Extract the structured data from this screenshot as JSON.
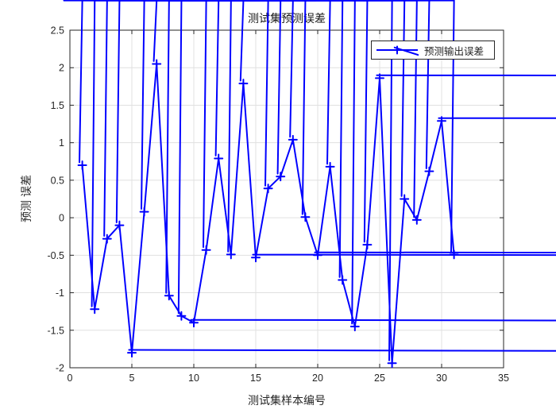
{
  "figure": {
    "background": "#ffffff"
  },
  "chart_data": {
    "type": "line",
    "title": "测试集预测误差",
    "xlabel": "测试集样本编号",
    "ylabel": "预测 误差",
    "legend": {
      "label": "预测输出误差",
      "position": "top-right"
    },
    "x": [
      1,
      2,
      3,
      4,
      5,
      6,
      7,
      8,
      9,
      10,
      11,
      12,
      13,
      14,
      15,
      16,
      17,
      18,
      19,
      20,
      21,
      22,
      23,
      24,
      25,
      26,
      27,
      28,
      29,
      30,
      31
    ],
    "y": [
      0.7,
      -1.22,
      -0.28,
      -0.1,
      -1.8,
      0.08,
      2.05,
      -1.04,
      -1.31,
      -1.4,
      -0.43,
      0.79,
      -0.49,
      1.79,
      -0.53,
      0.39,
      0.55,
      1.04,
      0.01,
      -0.5,
      0.68,
      -0.83,
      -1.45,
      -0.36,
      1.86,
      -1.94,
      0.25,
      -0.03,
      0.62,
      1.29,
      -0.49
    ],
    "xlim": [
      0,
      35
    ],
    "ylim": [
      -2,
      2.5
    ],
    "xticks": [
      0,
      5,
      10,
      15,
      20,
      25,
      30,
      35
    ],
    "yticks": [
      -2,
      -1.5,
      -1,
      -0.5,
      0,
      0.5,
      1,
      1.5,
      2,
      2.5
    ],
    "grid": true,
    "line_color": "#0000FF",
    "line_width": 2,
    "marker": "asterisk",
    "marker_size": 10,
    "grid_color": "#e0e0e0",
    "axis_color": "#262626",
    "tick_label_color": "#262626"
  }
}
